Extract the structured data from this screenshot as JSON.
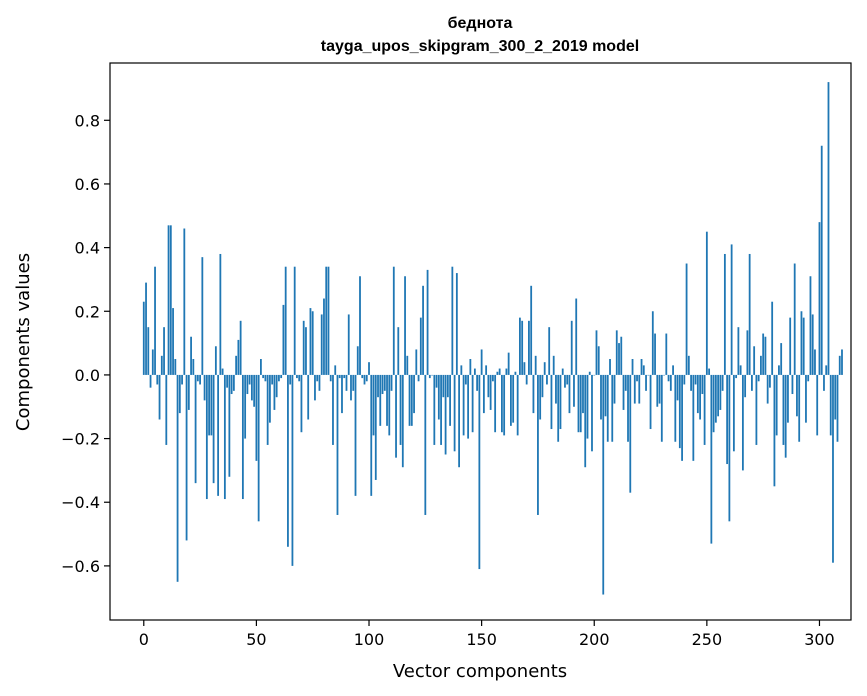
{
  "chart_data": {
    "type": "bar",
    "title": "беднота",
    "subtitle": "tayga_upos_skipgram_300_2_2019 model",
    "xlabel": "Vector components",
    "ylabel": "Components values",
    "xlim": [
      -15,
      314
    ],
    "ylim": [
      -0.77,
      0.98
    ],
    "xticks": [
      0,
      50,
      100,
      150,
      200,
      250,
      300
    ],
    "yticks": [
      -0.6,
      -0.4,
      -0.2,
      0.0,
      0.2,
      0.4,
      0.6,
      0.8
    ],
    "ytick_labels": [
      "−0.6",
      "−0.4",
      "−0.2",
      "0.0",
      "0.2",
      "0.4",
      "0.6",
      "0.8"
    ],
    "grid": false,
    "bar_color": "#1f77b4",
    "values": [
      0.23,
      0.29,
      0.15,
      -0.04,
      0.08,
      0.34,
      -0.03,
      -0.14,
      0.06,
      0.15,
      -0.22,
      0.47,
      0.47,
      0.21,
      0.05,
      -0.65,
      -0.12,
      -0.03,
      0.46,
      -0.52,
      -0.11,
      0.12,
      0.05,
      -0.34,
      -0.02,
      -0.03,
      0.37,
      -0.08,
      -0.39,
      -0.19,
      -0.19,
      -0.34,
      0.09,
      -0.38,
      0.38,
      0.02,
      -0.39,
      -0.04,
      -0.32,
      -0.06,
      -0.05,
      0.06,
      0.11,
      0.17,
      -0.39,
      -0.2,
      -0.06,
      -0.03,
      -0.08,
      -0.1,
      -0.27,
      -0.46,
      0.05,
      -0.01,
      -0.02,
      -0.22,
      -0.15,
      -0.03,
      -0.11,
      -0.07,
      -0.02,
      -0.01,
      0.22,
      0.34,
      -0.54,
      -0.03,
      -0.6,
      0.34,
      -0.01,
      -0.02,
      -0.18,
      0.17,
      0.15,
      -0.14,
      0.21,
      0.2,
      -0.08,
      -0.02,
      -0.05,
      0.19,
      0.24,
      0.34,
      0.34,
      -0.02,
      -0.22,
      0.03,
      -0.44,
      -0.01,
      -0.12,
      -0.01,
      -0.05,
      0.19,
      -0.08,
      -0.05,
      -0.38,
      0.09,
      0.31,
      -0.01,
      -0.03,
      -0.02,
      0.04,
      -0.38,
      -0.19,
      -0.33,
      -0.07,
      -0.16,
      -0.06,
      -0.05,
      -0.16,
      -0.19,
      -0.05,
      0.34,
      -0.26,
      0.15,
      -0.22,
      -0.29,
      0.31,
      0.06,
      -0.16,
      -0.16,
      -0.12,
      0.08,
      -0.02,
      0.18,
      0.28,
      -0.44,
      0.33,
      -0.01,
      0.0,
      -0.22,
      -0.04,
      -0.14,
      -0.22,
      -0.07,
      -0.25,
      -0.07,
      -0.16,
      0.34,
      -0.24,
      0.32,
      -0.29,
      0.03,
      -0.19,
      -0.03,
      -0.2,
      0.05,
      -0.18,
      0.02,
      -0.05,
      -0.61,
      0.08,
      -0.12,
      0.03,
      -0.07,
      -0.11,
      -0.02,
      -0.18,
      0.01,
      0.02,
      -0.18,
      -0.19,
      0.02,
      0.07,
      -0.16,
      -0.15,
      0.01,
      -0.19,
      0.18,
      0.17,
      0.04,
      -0.03,
      0.17,
      0.28,
      -0.12,
      0.06,
      -0.44,
      -0.14,
      -0.07,
      0.04,
      -0.03,
      0.15,
      -0.17,
      0.06,
      -0.09,
      -0.21,
      -0.17,
      0.02,
      -0.04,
      -0.03,
      -0.12,
      0.17,
      -0.1,
      0.24,
      -0.18,
      -0.18,
      -0.12,
      -0.29,
      -0.2,
      0.01,
      -0.24,
      0.0,
      0.14,
      0.09,
      -0.14,
      -0.69,
      -0.13,
      -0.21,
      0.05,
      -0.21,
      -0.09,
      0.14,
      0.1,
      0.12,
      -0.11,
      -0.05,
      -0.21,
      -0.37,
      0.05,
      -0.09,
      -0.02,
      -0.09,
      0.05,
      0.03,
      -0.05,
      0.0,
      -0.17,
      0.2,
      0.13,
      -0.1,
      -0.09,
      -0.21,
      0.0,
      0.13,
      -0.02,
      -0.05,
      0.03,
      -0.21,
      -0.08,
      -0.23,
      -0.27,
      -0.03,
      0.35,
      0.06,
      -0.05,
      -0.27,
      -0.03,
      -0.12,
      -0.14,
      -0.06,
      -0.22,
      0.45,
      0.02,
      -0.53,
      -0.18,
      -0.15,
      -0.13,
      -0.11,
      -0.05,
      0.38,
      -0.28,
      -0.46,
      0.41,
      -0.24,
      -0.01,
      0.15,
      0.03,
      -0.3,
      -0.07,
      0.14,
      0.38,
      -0.05,
      0.09,
      -0.22,
      -0.02,
      0.06,
      0.13,
      0.12,
      -0.09,
      -0.04,
      0.23,
      -0.35,
      -0.19,
      0.03,
      0.1,
      -0.22,
      -0.26,
      -0.15,
      0.18,
      -0.06,
      0.35,
      -0.13,
      -0.21,
      0.2,
      0.18,
      -0.15,
      -0.02,
      0.31,
      0.19,
      0.08,
      -0.19,
      0.48,
      0.72,
      -0.05,
      0.03,
      0.92,
      -0.19,
      -0.59,
      -0.14,
      -0.21,
      0.06,
      0.08
    ]
  }
}
